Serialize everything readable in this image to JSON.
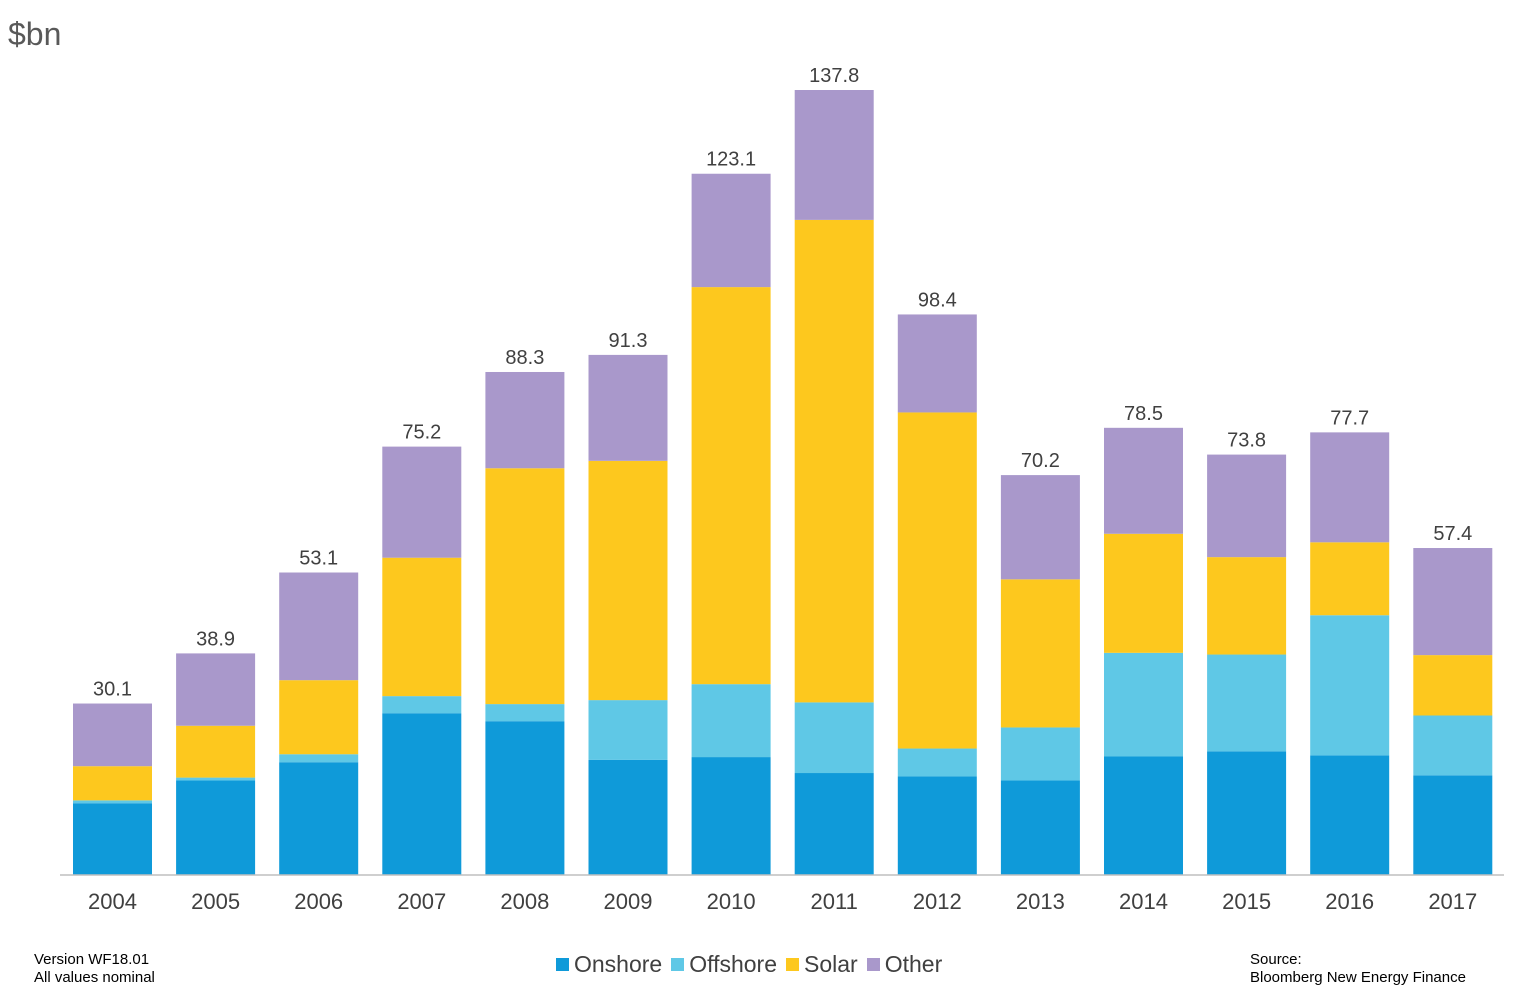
{
  "unit_label": "$bn",
  "footer": {
    "version": "Version WF18.01",
    "note": "All values  nominal",
    "source_label": "Source:",
    "source_name": "Bloomberg  New  Energy Finance"
  },
  "legend": [
    {
      "name": "Onshore",
      "color": "#0f9ad9"
    },
    {
      "name": "Offshore",
      "color": "#5fc8e6"
    },
    {
      "name": "Solar",
      "color": "#fdc81e"
    },
    {
      "name": "Other",
      "color": "#a998cb"
    }
  ],
  "chart_data": {
    "type": "bar",
    "stacked": true,
    "categories": [
      "2004",
      "2005",
      "2006",
      "2007",
      "2008",
      "2009",
      "2010",
      "2011",
      "2012",
      "2013",
      "2014",
      "2015",
      "2016",
      "2017"
    ],
    "series": [
      {
        "name": "Onshore",
        "color": "#0f9ad9",
        "values": [
          12.6,
          16.6,
          19.8,
          28.4,
          27.0,
          20.2,
          20.7,
          17.9,
          17.3,
          16.6,
          20.8,
          21.7,
          21.0,
          17.5
        ]
      },
      {
        "name": "Offshore",
        "color": "#5fc8e6",
        "values": [
          0.5,
          0.5,
          1.4,
          3.0,
          3.0,
          10.5,
          12.8,
          12.4,
          4.9,
          9.3,
          18.2,
          17.0,
          24.6,
          10.5
        ]
      },
      {
        "name": "Solar",
        "color": "#fdc81e",
        "values": [
          6.0,
          9.1,
          13.0,
          24.3,
          41.4,
          42.0,
          69.7,
          84.7,
          59.0,
          26.0,
          20.9,
          17.1,
          12.8,
          10.6
        ]
      },
      {
        "name": "Other",
        "color": "#a998cb",
        "values": [
          11.0,
          12.7,
          18.9,
          19.5,
          16.9,
          18.6,
          19.9,
          22.8,
          17.2,
          18.3,
          18.6,
          18.0,
          19.3,
          18.8
        ]
      }
    ],
    "totals": [
      "30.1",
      "38.9",
      "53.1",
      "75.2",
      "88.3",
      "91.3",
      "123.1",
      "137.8",
      "98.4",
      "70.2",
      "78.5",
      "73.8",
      "77.7",
      "57.4"
    ],
    "ylim": [
      0,
      152
    ],
    "ylabel": "$bn",
    "grid": false,
    "legend_position": "bottom"
  }
}
